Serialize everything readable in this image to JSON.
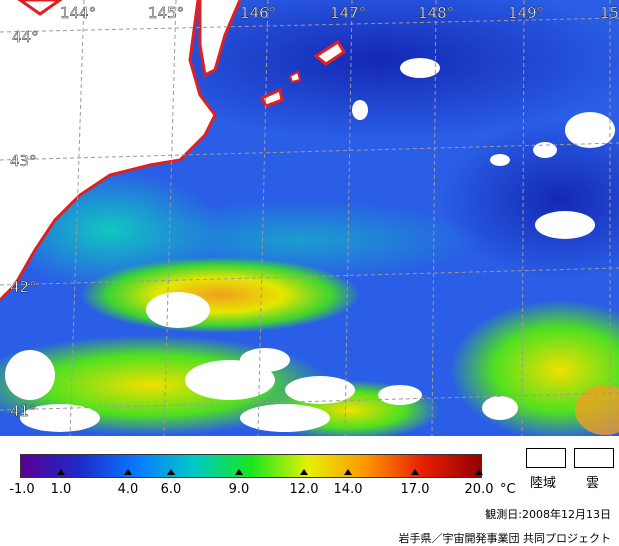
{
  "map": {
    "lon_labels": [
      "144°",
      "145°",
      "146°",
      "147°",
      "148°",
      "149°",
      "15"
    ],
    "lat_labels": [
      "44°",
      "43°",
      "42°",
      "41°"
    ],
    "colors": {
      "coastline": "#e02020",
      "land": "#ffffff",
      "grid": "#9a9a9a"
    }
  },
  "legend": {
    "min_value": "-1.0",
    "ticks": [
      "1.0",
      "4.0",
      "6.0",
      "9.0",
      "12.0",
      "14.0",
      "17.0",
      "20.0"
    ],
    "unit": "°C",
    "key_land": "陸域",
    "key_cloud": "雲",
    "colors": [
      "#5a0096",
      "#1e28c8",
      "#0a78ff",
      "#00c8c8",
      "#19e61e",
      "#e6f000",
      "#ff9600",
      "#e61e00",
      "#960000"
    ]
  },
  "footer": {
    "date_text": "観測日:2008年12月13日",
    "credit_text": "岩手県／宇宙開発事業団 共同プロジェクト"
  }
}
